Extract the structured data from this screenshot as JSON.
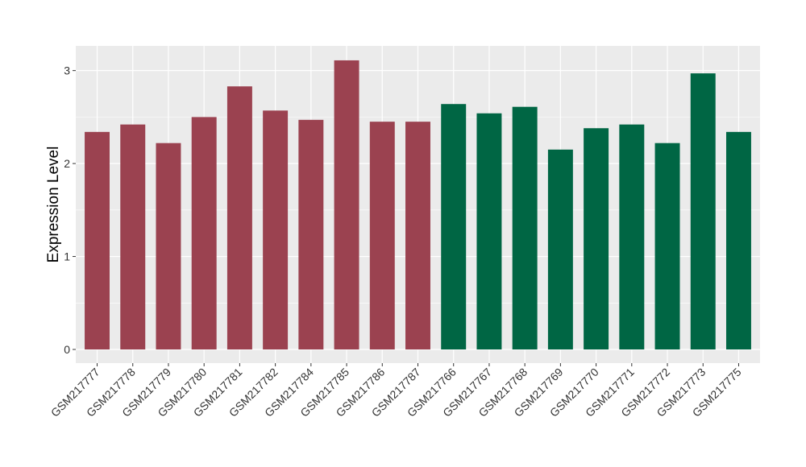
{
  "chart_data": {
    "type": "bar",
    "title": "",
    "xlabel": "",
    "ylabel": "Expression Level",
    "ylim": [
      -0.15,
      3.25
    ],
    "yticks": [
      0,
      1,
      2,
      3
    ],
    "grid": true,
    "categories": [
      "GSM217777",
      "GSM217778",
      "GSM217779",
      "GSM217780",
      "GSM217781",
      "GSM217782",
      "GSM217784",
      "GSM217785",
      "GSM217786",
      "GSM217787",
      "GSM217766",
      "GSM217767",
      "GSM217768",
      "GSM217769",
      "GSM217770",
      "GSM217771",
      "GSM217772",
      "GSM217773",
      "GSM217775"
    ],
    "values": [
      2.34,
      2.42,
      2.22,
      2.5,
      2.83,
      2.57,
      2.47,
      3.11,
      2.45,
      2.45,
      2.64,
      2.54,
      2.61,
      2.15,
      2.38,
      2.42,
      2.22,
      2.97,
      2.34
    ],
    "groups": [
      "a",
      "a",
      "a",
      "a",
      "a",
      "a",
      "a",
      "a",
      "a",
      "a",
      "b",
      "b",
      "b",
      "b",
      "b",
      "b",
      "b",
      "b",
      "b"
    ],
    "group_colors": {
      "a": "#9B4250",
      "b": "#006644"
    },
    "panel_background": "#EBEBEB"
  }
}
